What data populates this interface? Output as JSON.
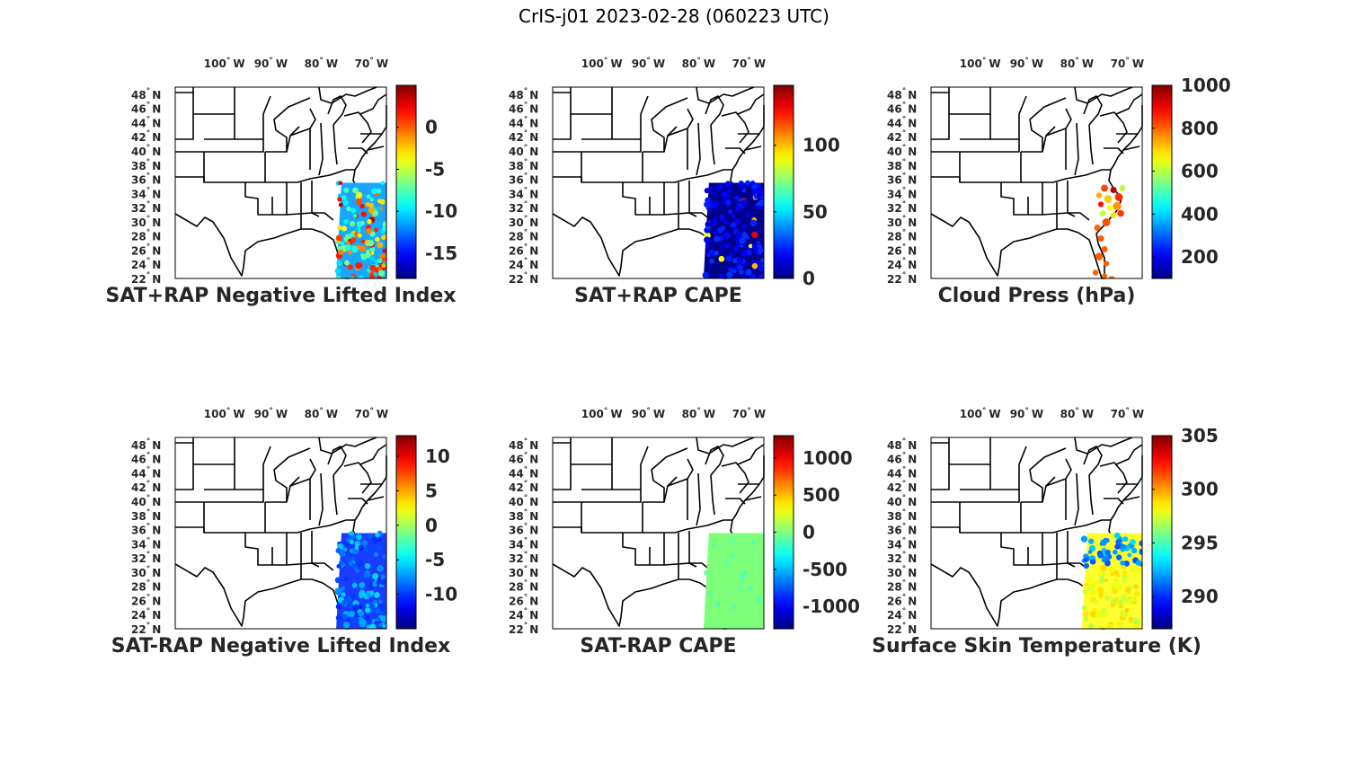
{
  "figure": {
    "title": "CrIS-j01 2023-02-28 (060223 UTC)"
  },
  "axes": {
    "lon_labels": [
      "100",
      "90",
      "80",
      "70"
    ],
    "lon_values": [
      -100,
      -90,
      -80,
      -70
    ],
    "lon_hemisphere": "W",
    "lat_labels": [
      "48",
      "46",
      "44",
      "42",
      "40",
      "38",
      "36",
      "34",
      "32",
      "30",
      "28",
      "26",
      "24",
      "22"
    ],
    "lat_values": [
      48,
      46,
      44,
      42,
      40,
      38,
      36,
      34,
      32,
      30,
      28,
      26,
      24,
      22
    ],
    "lat_hemisphere": "N",
    "degree_symbol": "°",
    "lon_range": [
      -108,
      -66
    ],
    "lat_range": [
      22,
      49
    ]
  },
  "panels": [
    {
      "id": "sat-rap-pos-li",
      "title": "SAT+RAP Negative Lifted Index",
      "colorbar": {
        "colormap": "jet",
        "range": [
          -18,
          5
        ],
        "ticks": [
          0,
          -5,
          -10,
          -15
        ],
        "tick_labels": [
          "0",
          "-5",
          "-10",
          "-15"
        ]
      },
      "swath": {
        "lon": [
          -76,
          -66
        ],
        "lat": [
          22,
          35.5
        ],
        "pattern": "mixed",
        "base_color": "#1aa6ff"
      }
    },
    {
      "id": "sat-rap-pos-cape",
      "title": "SAT+RAP CAPE",
      "colorbar": {
        "colormap": "jet",
        "range": [
          0,
          145
        ],
        "ticks": [
          0,
          50,
          100
        ],
        "tick_labels": [
          "0",
          "50",
          "100"
        ]
      },
      "swath": {
        "lon": [
          -78,
          -66
        ],
        "lat": [
          22,
          35.5
        ],
        "pattern": "low",
        "base_color": "#00008f"
      }
    },
    {
      "id": "cloud-press",
      "title": "Cloud Press (hPa)",
      "colorbar": {
        "colormap": "jet",
        "range": [
          100,
          1000
        ],
        "ticks": [
          1000,
          800,
          600,
          400,
          200
        ],
        "tick_labels": [
          "1000",
          "800",
          "600",
          "400",
          "200"
        ]
      },
      "swath": {
        "lon": [
          -76,
          -66
        ],
        "lat": [
          22,
          35.5
        ],
        "pattern": "clouds",
        "base_color": "#ff6a00"
      }
    },
    {
      "id": "sat-rap-neg-li",
      "title": "SAT-RAP Negative Lifted Index",
      "colorbar": {
        "colormap": "jet",
        "range": [
          -15,
          13
        ],
        "ticks": [
          10,
          5,
          0,
          -5,
          -10
        ],
        "tick_labels": [
          "10",
          "5",
          "0",
          "-5",
          "-10"
        ]
      },
      "swath": {
        "lon": [
          -76,
          -66
        ],
        "lat": [
          22,
          35.5
        ],
        "pattern": "blue",
        "base_color": "#1a3cff"
      }
    },
    {
      "id": "sat-rap-neg-cape",
      "title": "SAT-RAP CAPE",
      "colorbar": {
        "colormap": "jet",
        "range": [
          -1300,
          1300
        ],
        "ticks": [
          1000,
          500,
          0,
          -500,
          -1000
        ],
        "tick_labels": [
          "1000",
          "500",
          "0",
          "-500",
          "-1000"
        ]
      },
      "swath": {
        "lon": [
          -78,
          -66
        ],
        "lat": [
          22,
          35.5
        ],
        "pattern": "flat",
        "base_color": "#7dff7a"
      }
    },
    {
      "id": "skin-temp",
      "title": "Surface Skin Temperature (K)",
      "colorbar": {
        "colormap": "jet",
        "range": [
          287,
          305
        ],
        "ticks": [
          305,
          300,
          295,
          290
        ],
        "tick_labels": [
          "305",
          "300",
          "295",
          "290"
        ]
      },
      "swath": {
        "lon": [
          -78,
          -66
        ],
        "lat": [
          22,
          35.5
        ],
        "pattern": "temp",
        "base_color": "#ffff30"
      }
    }
  ]
}
